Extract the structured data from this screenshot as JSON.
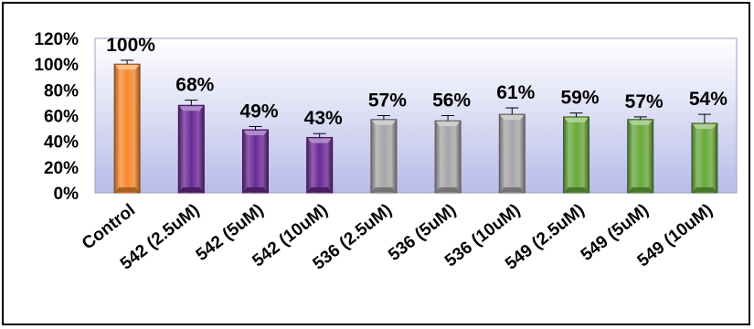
{
  "chart_data": {
    "type": "bar",
    "title": "",
    "xlabel": "",
    "ylabel": "",
    "ylim": [
      0,
      1.2
    ],
    "y_ticks": [
      "0%",
      "20%",
      "40%",
      "60%",
      "80%",
      "100%",
      "120%"
    ],
    "categories": [
      "Control",
      "542 (2.5uM)",
      "542 (5uM)",
      "542 (10uM)",
      "536 (2.5uM)",
      "536 (5uM)",
      "536 (10uM)",
      "549 (2.5uM)",
      "549 (5uM)",
      "549 (10uM)"
    ],
    "values": [
      1.0,
      0.68,
      0.49,
      0.43,
      0.57,
      0.56,
      0.61,
      0.59,
      0.57,
      0.54
    ],
    "errors": [
      0.03,
      0.04,
      0.025,
      0.03,
      0.03,
      0.04,
      0.05,
      0.03,
      0.02,
      0.07
    ],
    "data_labels": [
      "100%",
      "68%",
      "49%",
      "43%",
      "57%",
      "56%",
      "61%",
      "59%",
      "57%",
      "54%"
    ],
    "colors": [
      "#f58a2e",
      "#6a2a96",
      "#6a2a96",
      "#6a2a96",
      "#a6a6a6",
      "#a6a6a6",
      "#a6a6a6",
      "#6aaa3c",
      "#6aaa3c",
      "#6aaa3c"
    ],
    "plot_background": [
      "#ffffff",
      "#b8bce8"
    ],
    "grid": false,
    "legend": "none"
  }
}
